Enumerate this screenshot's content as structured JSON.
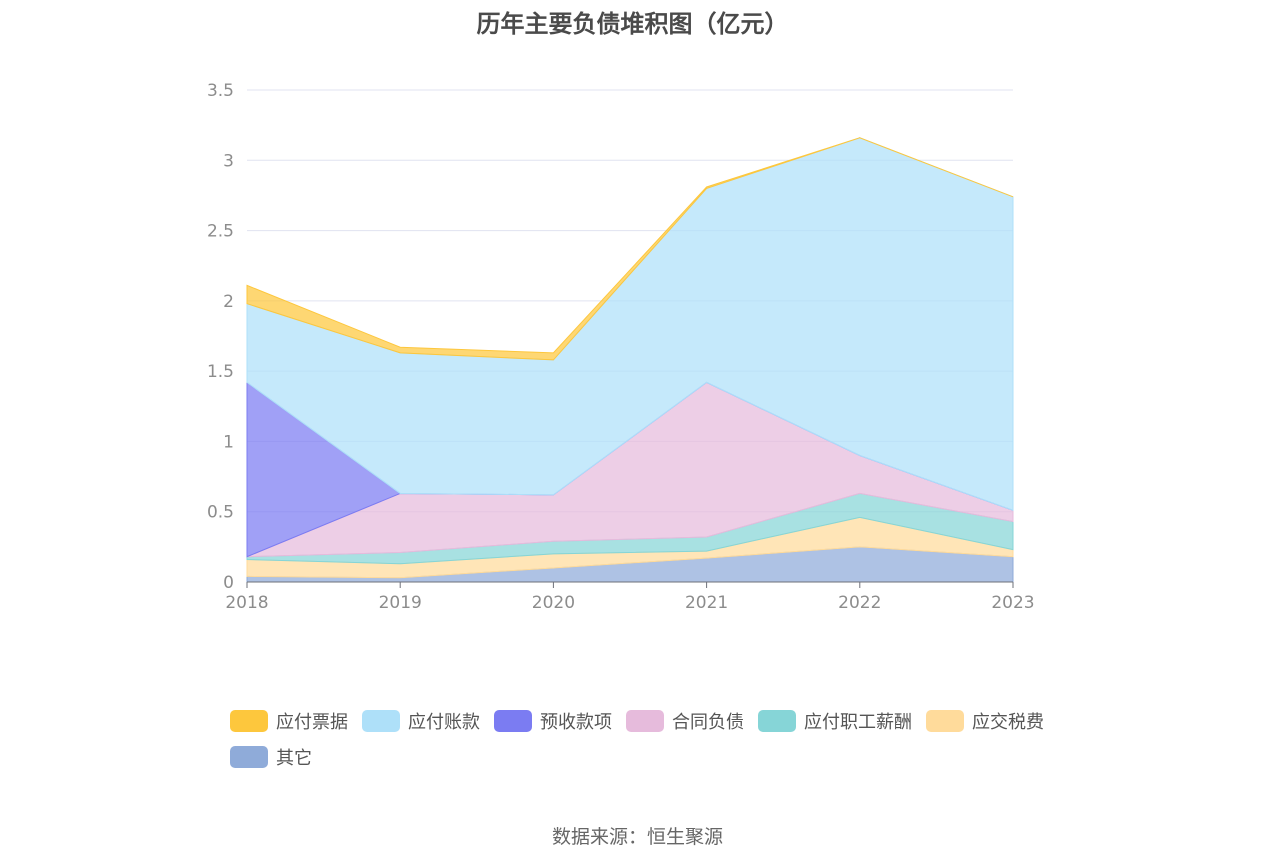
{
  "chart_data": {
    "type": "area",
    "stacked": true,
    "title": "历年主要负债堆积图（亿元）",
    "categories": [
      "2018",
      "2019",
      "2020",
      "2021",
      "2022",
      "2023"
    ],
    "ylim": [
      0,
      3.5
    ],
    "yticks": [
      "0",
      "0.5",
      "1",
      "1.5",
      "2",
      "2.5",
      "3",
      "3.5"
    ],
    "grid": true,
    "legend_position": "bottom",
    "series": [
      {
        "name": "其它",
        "color": "#8fabd9",
        "values": [
          0.04,
          0.03,
          0.1,
          0.17,
          0.25,
          0.18
        ]
      },
      {
        "name": "应交税费",
        "color": "#ffdb9b",
        "values": [
          0.12,
          0.1,
          0.1,
          0.05,
          0.21,
          0.05
        ]
      },
      {
        "name": "应付职工薪酬",
        "color": "#86d5d7",
        "values": [
          0.02,
          0.08,
          0.09,
          0.1,
          0.17,
          0.2
        ]
      },
      {
        "name": "合同负债",
        "color": "#e6bbdc",
        "values": [
          0.0,
          0.42,
          0.33,
          1.1,
          0.27,
          0.08
        ]
      },
      {
        "name": "预收款项",
        "color": "#7b7cf2",
        "values": [
          1.24,
          0.0,
          0.0,
          0.0,
          0.0,
          0.0
        ]
      },
      {
        "name": "应付账款",
        "color": "#aee0f9",
        "values": [
          0.56,
          1.0,
          0.96,
          1.38,
          2.26,
          2.23
        ]
      },
      {
        "name": "应付票据",
        "color": "#fdc73d",
        "values": [
          0.13,
          0.04,
          0.05,
          0.01,
          0.0,
          0.0
        ]
      }
    ]
  },
  "legend": {
    "items": [
      {
        "label": "应付票据",
        "color": "#fdc73d"
      },
      {
        "label": "应付账款",
        "color": "#aee0f9"
      },
      {
        "label": "预收款项",
        "color": "#7b7cf2"
      },
      {
        "label": "合同负债",
        "color": "#e6bbdc"
      },
      {
        "label": "应付职工薪酬",
        "color": "#86d5d7"
      },
      {
        "label": "应交税费",
        "color": "#ffdb9b"
      },
      {
        "label": "其它",
        "color": "#8fabd9"
      }
    ]
  },
  "source": "数据来源：恒生聚源"
}
